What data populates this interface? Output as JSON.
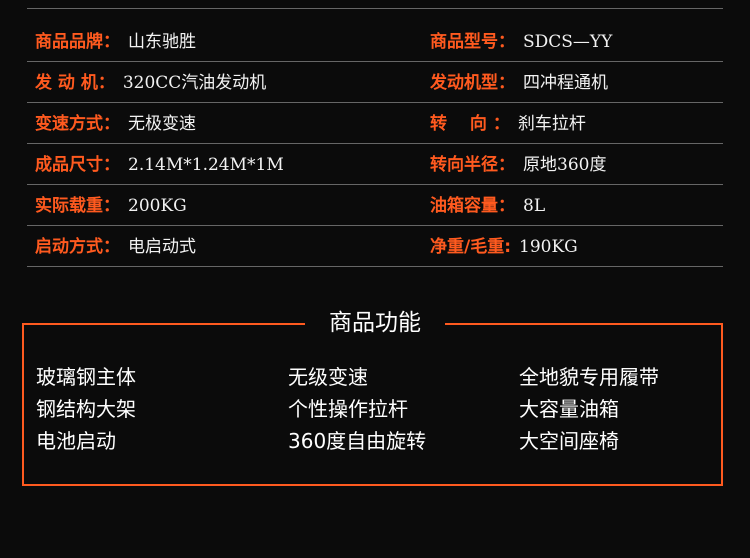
{
  "specs": [
    [
      {
        "label": "商品品牌：",
        "value": "山东驰胜"
      },
      {
        "label": "商品型号：",
        "value": "SDCS—YY"
      }
    ],
    [
      {
        "label": "发 动 机：",
        "value": "320CC汽油发动机"
      },
      {
        "label": "发动机型：",
        "value": "四冲程通机"
      }
    ],
    [
      {
        "label": "变速方式：",
        "value": "无极变速"
      },
      {
        "label": "转　 向 ：",
        "value": "刹车拉杆"
      }
    ],
    [
      {
        "label": "成品尺寸：",
        "value": "2.14M*1.24M*1M"
      },
      {
        "label": "转向半径：",
        "value": "原地360度"
      }
    ],
    [
      {
        "label": "实际载重：",
        "value": "200KG"
      },
      {
        "label": "油箱容量：",
        "value": "8L"
      }
    ],
    [
      {
        "label": "启动方式：",
        "value": "电启动式"
      },
      {
        "label": "净重/毛重:",
        "value": "190KG"
      }
    ]
  ],
  "features": {
    "title": "商品功能",
    "columns": [
      [
        "玻璃钢主体",
        "钢结构大架",
        "电池启动"
      ],
      [
        "无级变速",
        "个性操作拉杆",
        "360度自由旋转"
      ],
      [
        "全地貌专用履带",
        "大容量油箱",
        "大空间座椅"
      ]
    ]
  },
  "colors": {
    "accent": "#ff5a1f",
    "background": "#0b0b0b"
  }
}
